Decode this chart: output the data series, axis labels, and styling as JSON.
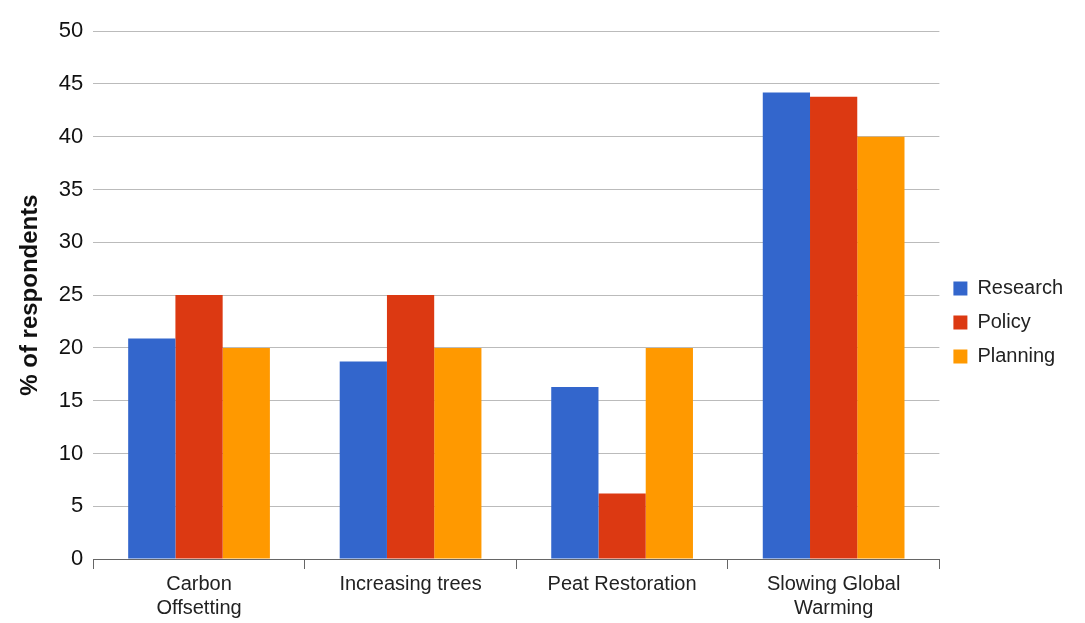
{
  "chart_data": {
    "type": "bar",
    "ylabel": "% of respondents",
    "categories": [
      "Carbon Offsetting",
      "Increasing trees",
      "Peat Restoration",
      "Slowing Global Warming"
    ],
    "series": [
      {
        "name": "Research",
        "color": "#3366cc",
        "values": [
          20.9,
          18.7,
          16.3,
          44.2
        ]
      },
      {
        "name": "Policy",
        "color": "#dc3912",
        "values": [
          25,
          25,
          6.2,
          43.8
        ]
      },
      {
        "name": "Planning",
        "color": "#ff9900",
        "values": [
          20,
          20,
          20,
          40
        ]
      }
    ],
    "ylim": [
      0,
      50
    ],
    "yticks": [
      0,
      5,
      10,
      15,
      20,
      25,
      30,
      35,
      40,
      45,
      50
    ],
    "grid": "y",
    "legend": "right"
  }
}
